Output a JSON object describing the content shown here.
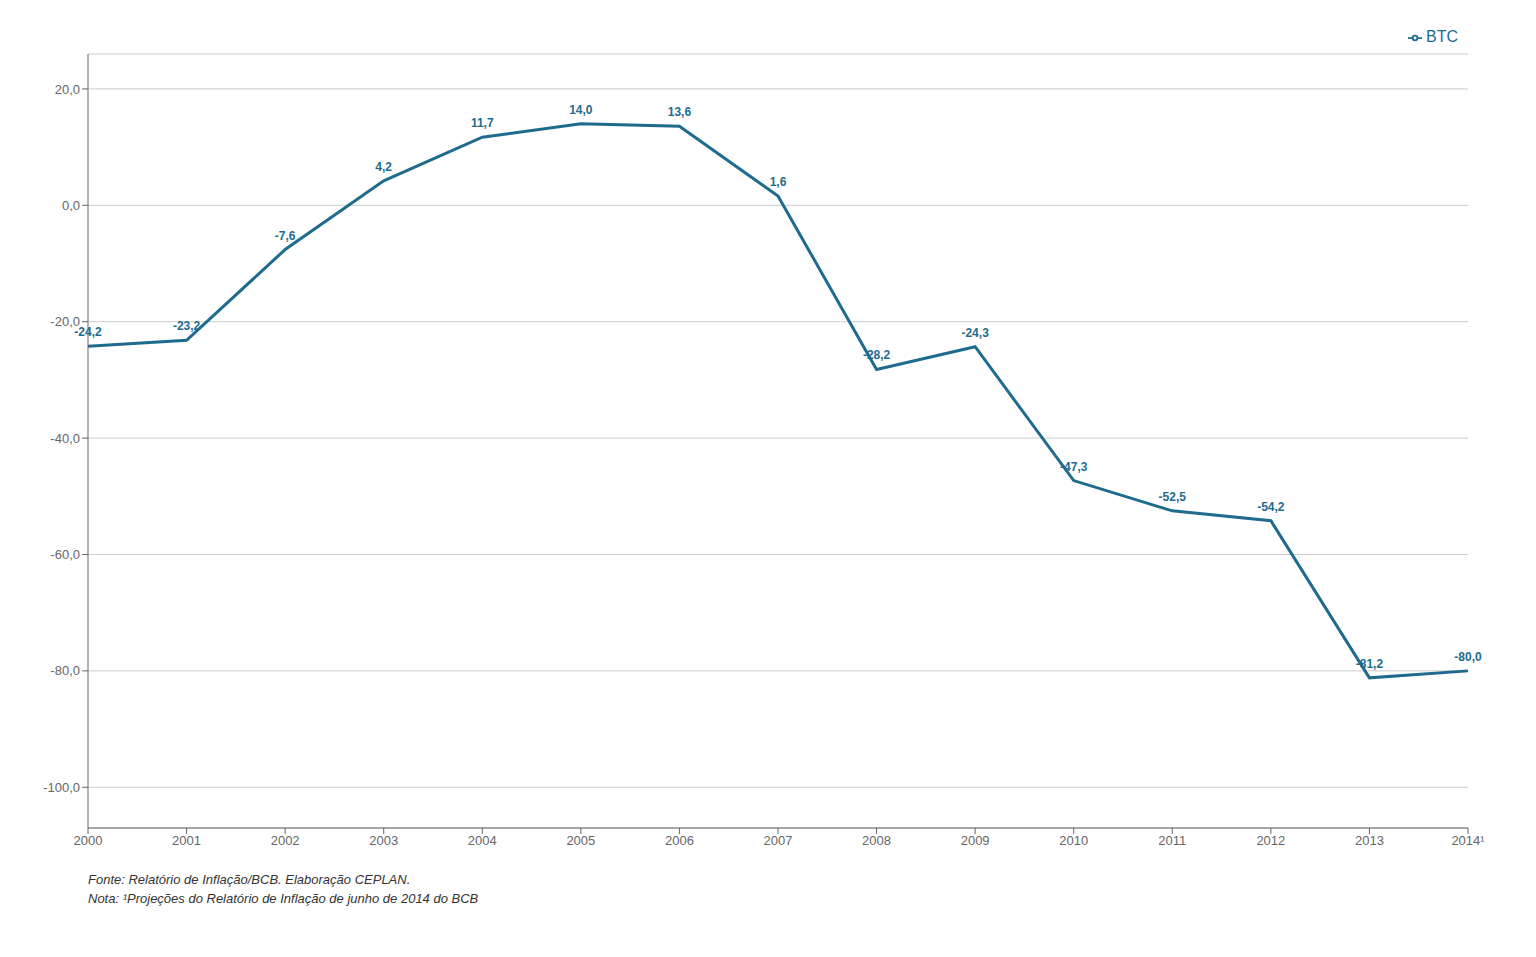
{
  "chart_data": {
    "type": "line",
    "categories": [
      "2000",
      "2001",
      "2002",
      "2003",
      "2004",
      "2005",
      "2006",
      "2007",
      "2008",
      "2009",
      "2010",
      "2011",
      "2012",
      "2013",
      "2014¹"
    ],
    "series": [
      {
        "name": "BTC",
        "color": "#1f6b8e",
        "values": [
          -24.2,
          -23.2,
          -7.6,
          4.2,
          11.7,
          14.0,
          13.6,
          1.6,
          -28.2,
          -24.3,
          -47.3,
          -52.5,
          -54.2,
          -81.2,
          -80.0
        ],
        "value_labels": [
          "-24,2",
          "-23,2",
          "-7,6",
          "4,2",
          "11,7",
          "14,0",
          "13,6",
          "1,6",
          "-28,2",
          "-24,3",
          "-47,3",
          "-52,5",
          "-54,2",
          "-81,2",
          "-80,0"
        ]
      }
    ],
    "ylim": [
      -107,
      26
    ],
    "yticks": [
      {
        "value": 20.0,
        "label": "20,0"
      },
      {
        "value": 0.0,
        "label": "0,0"
      },
      {
        "value": -20.0,
        "label": "-20,0"
      },
      {
        "value": -40.0,
        "label": "-40,0"
      },
      {
        "value": -60.0,
        "label": "-60,0"
      },
      {
        "value": -80.0,
        "label": "-80,0"
      },
      {
        "value": -100.0,
        "label": "-100,0"
      }
    ],
    "grid": true,
    "legend": "upper right",
    "data_labels": true,
    "annotations": [
      "Fonte: Relatório de Inflação/BCB. Elaboração CEPLAN.",
      "Nota: ¹Projeções do Relatório de Inflação de junho de 2014 do BCB"
    ]
  }
}
